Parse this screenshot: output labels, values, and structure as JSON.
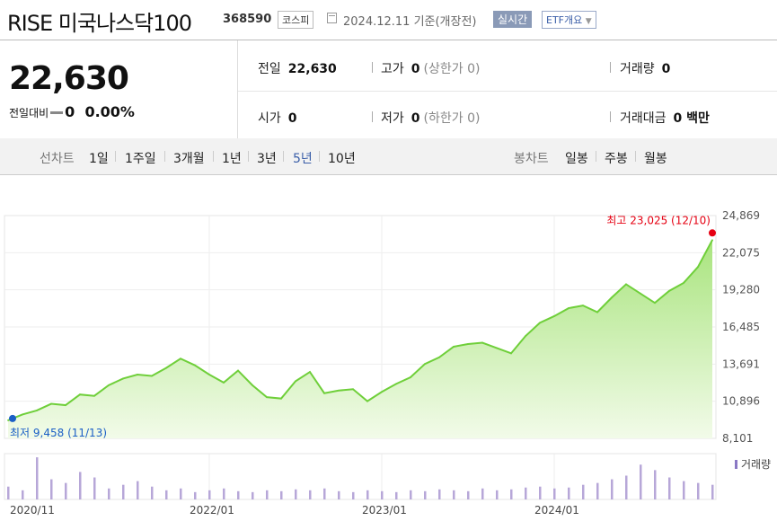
{
  "header": {
    "title": "RISE 미국나스닥100",
    "code": "368590",
    "market": "코스피",
    "date": "2024.12.11 기준(개장전)",
    "realtime_label": "실시간",
    "etf_label": "ETF개요"
  },
  "quote": {
    "price": "22,630",
    "change_label": "전일대비",
    "change": "0",
    "change_pct": "0.00%",
    "prev_label": "전일",
    "prev": "22,630",
    "open_label": "시가",
    "open": "0",
    "high_label": "고가",
    "high": "0",
    "high_limit": "(상한가 0)",
    "low_label": "저가",
    "low": "0",
    "low_limit": "(하한가 0)",
    "vol_label": "거래량",
    "vol": "0",
    "amt_label": "거래대금",
    "amt": "0 백만"
  },
  "tabs": {
    "line_label": "선차트",
    "line": [
      "1일",
      "1주일",
      "3개월",
      "1년",
      "3년",
      "5년",
      "10년"
    ],
    "active": "5년",
    "candle_label": "봉차트",
    "candle": [
      "일봉",
      "주봉",
      "월봉"
    ]
  },
  "colors": {
    "line": "#6fcf3a",
    "fill_top": "#a9e47e",
    "fill_bottom": "#f2fbe9",
    "volume": "#b7a7d8",
    "max": "#e60012",
    "min": "#1b5fc6"
  },
  "chart_data": {
    "type": "area",
    "ylim": [
      8101,
      24869
    ],
    "yticks": [
      "24,869",
      "22,075",
      "19,280",
      "16,485",
      "13,691",
      "10,896",
      "8,101"
    ],
    "xticks": [
      "2020/11",
      "2022/01",
      "2023/01",
      "2024/01"
    ],
    "max_label": "최고 23,025 (12/10)",
    "min_label": "최저 9,458 (11/13)",
    "volume_label": "거래량",
    "x": [
      "2020/11",
      "2020/12",
      "2021/01",
      "2021/02",
      "2021/03",
      "2021/04",
      "2021/05",
      "2021/06",
      "2021/07",
      "2021/08",
      "2021/09",
      "2021/10",
      "2021/11",
      "2021/12",
      "2022/01",
      "2022/02",
      "2022/03",
      "2022/04",
      "2022/05",
      "2022/06",
      "2022/07",
      "2022/08",
      "2022/09",
      "2022/10",
      "2022/11",
      "2022/12",
      "2023/01",
      "2023/02",
      "2023/03",
      "2023/04",
      "2023/05",
      "2023/06",
      "2023/07",
      "2023/08",
      "2023/09",
      "2023/10",
      "2023/11",
      "2023/12",
      "2024/01",
      "2024/02",
      "2024/03",
      "2024/04",
      "2024/05",
      "2024/06",
      "2024/07",
      "2024/08",
      "2024/09",
      "2024/10",
      "2024/11",
      "2024/12"
    ],
    "values": [
      9458,
      9900,
      10200,
      10700,
      10600,
      11400,
      11300,
      12100,
      12600,
      12900,
      12800,
      13400,
      14100,
      13600,
      12900,
      12300,
      13200,
      12100,
      11200,
      11100,
      12400,
      13100,
      11500,
      11700,
      11800,
      10900,
      11600,
      12200,
      12700,
      13700,
      14200,
      15000,
      15200,
      15300,
      14900,
      14500,
      15800,
      16800,
      17300,
      17900,
      18100,
      17600,
      18700,
      19700,
      19000,
      18300,
      19200,
      19800,
      21000,
      23025
    ],
    "volume": [
      14,
      10,
      46,
      22,
      18,
      30,
      24,
      12,
      16,
      20,
      14,
      10,
      12,
      8,
      10,
      12,
      9,
      8,
      10,
      9,
      11,
      10,
      12,
      9,
      8,
      10,
      9,
      8,
      10,
      9,
      11,
      10,
      9,
      12,
      10,
      11,
      13,
      14,
      12,
      13,
      16,
      18,
      22,
      26,
      38,
      32,
      24,
      20,
      18,
      16
    ]
  }
}
